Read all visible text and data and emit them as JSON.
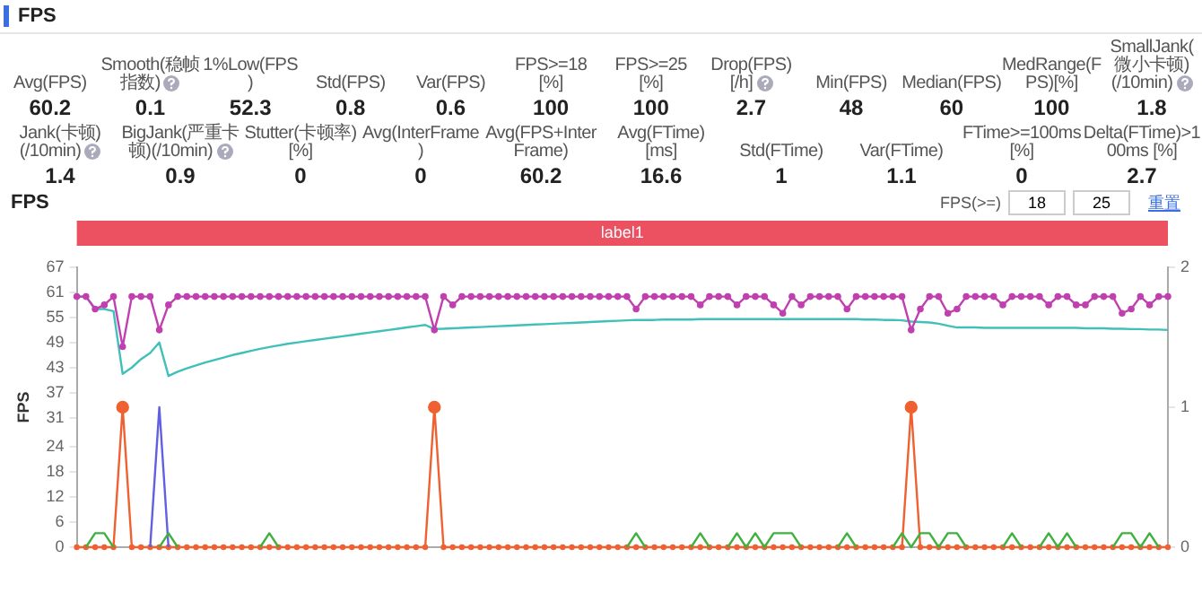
{
  "chart_data": [
    {
      "type": "other",
      "title": "FPS",
      "annotations": [
        "Avg(FPS)",
        "60.2",
        "Smooth(稳帧指数)",
        "0.1",
        "1%Low(FPS)",
        "52.3",
        "Std(FPS)",
        "0.8",
        "Var(FPS)",
        "0.6",
        "FPS>=18 [%]",
        "100",
        "FPS>=25 [%]",
        "100",
        "Drop(FPS) [/h]",
        "2.7",
        "Min(FPS)",
        "48",
        "Median(FPS)",
        "60",
        "MedRange(FPS)[%]",
        "100",
        "SmallJank(微小卡顿)(/10min)",
        "1.8",
        "Jank(卡顿)(/10min)",
        "1.4",
        "BigJank(严重卡顿)(/10min)",
        "0.9",
        "Stutter(卡顿率) [%]",
        "0",
        "Avg(InterFrame)",
        "0",
        "Avg(FPS+InterFrame)",
        "60.2",
        "Avg(FTime) [ms]",
        "16.6",
        "Std(FTime)",
        "1",
        "Var(FTime)",
        "1.1",
        "FTime>=100ms [%]",
        "0",
        "Delta(FTime)>100ms [%]",
        "2.7"
      ]
    },
    {
      "type": "line",
      "title": "FPS",
      "ylabel": "FPS",
      "ylim": [
        0,
        67
      ],
      "yticks": [
        0,
        6,
        12,
        18,
        24,
        31,
        37,
        43,
        49,
        55,
        61,
        67
      ],
      "y2lim": [
        0,
        2
      ],
      "y2ticks": [
        0,
        1,
        2
      ],
      "tick_labels": "y",
      "annotations": [
        "label1",
        "FPS(>=)",
        "18",
        "25",
        "重置"
      ],
      "categories": [
        null,
        null,
        null,
        null,
        null,
        null,
        null,
        null,
        null,
        null,
        null,
        null,
        null,
        null,
        null,
        null,
        null,
        null,
        null,
        null,
        null,
        null,
        null,
        null,
        null,
        null,
        null,
        null,
        null,
        null,
        null,
        null,
        null,
        null,
        null,
        null,
        null,
        null,
        null,
        null,
        null,
        null,
        null,
        null,
        null,
        null,
        null,
        null,
        null,
        null,
        null,
        null,
        null,
        null,
        null,
        null,
        null,
        null,
        null,
        null,
        null,
        null,
        null,
        null,
        null,
        null,
        null,
        null,
        null,
        null,
        null,
        null,
        null,
        null,
        null,
        null,
        null,
        null,
        null,
        null,
        null,
        null,
        null,
        null,
        null,
        null,
        null,
        null,
        null,
        null,
        null,
        null,
        null,
        null,
        null,
        null,
        null,
        null,
        null,
        null,
        null,
        null,
        null,
        null,
        null,
        null,
        null,
        null,
        null,
        null,
        null,
        null,
        null,
        null,
        null,
        null,
        null,
        null,
        null,
        null
      ],
      "series": [
        {
          "type": "line",
          "color": "#40c0b8",
          "marker": "none",
          "values": [
            60,
            60,
            57,
            57,
            56.5,
            41.5,
            43,
            45,
            46.5,
            49,
            41,
            42,
            42.8,
            43.5,
            44.2,
            44.8,
            45.4,
            46,
            46.5,
            47,
            47.5,
            47.9,
            48.3,
            48.7,
            49,
            49.3,
            49.6,
            49.9,
            50.2,
            50.5,
            50.8,
            51.1,
            51.4,
            51.7,
            52,
            52.3,
            52.6,
            52.9,
            53.2,
            52.2,
            52.3,
            52.4,
            52.5,
            52.6,
            52.7,
            52.8,
            52.9,
            53,
            53.1,
            53.2,
            53.3,
            53.4,
            53.5,
            53.6,
            53.7,
            53.8,
            53.9,
            54,
            54.1,
            54.2,
            54.3,
            54.4,
            54.4,
            54.4,
            54.5,
            54.5,
            54.5,
            54.5,
            54.6,
            54.6,
            54.6,
            54.6,
            54.6,
            54.6,
            54.6,
            54.6,
            54.6,
            54.6,
            54.6,
            54.6,
            54.6,
            54.6,
            54.6,
            54.6,
            54.6,
            54.6,
            54.5,
            54.5,
            54.4,
            54.4,
            54.3,
            54,
            53.9,
            53.8,
            53.5,
            53,
            52.6,
            52.6,
            52.6,
            52.5,
            52.5,
            52.5,
            52.5,
            52.5,
            52.5,
            52.5,
            52.5,
            52.5,
            52.5,
            52.5,
            52.4,
            52.4,
            52.4,
            52.3,
            52.3,
            52.2,
            52.2,
            52.1,
            52.1,
            52
          ]
        },
        {
          "type": "line",
          "color": "#c040b0",
          "marker": "circle",
          "values": [
            60,
            60,
            57,
            58,
            60,
            48,
            60,
            60,
            60,
            52,
            58,
            60,
            60,
            60,
            60,
            60,
            60,
            60,
            60,
            60,
            60,
            60,
            60,
            60,
            60,
            60,
            60,
            60,
            60,
            60,
            60,
            60,
            60,
            60,
            60,
            60,
            60,
            60,
            60,
            52,
            60,
            58,
            60,
            60,
            60,
            60,
            60,
            60,
            60,
            60,
            60,
            60,
            60,
            60,
            60,
            60,
            60,
            60,
            60,
            60,
            60,
            57,
            60,
            60,
            60,
            60,
            60,
            60,
            58,
            60,
            60,
            60,
            58,
            60,
            60,
            60,
            58,
            56,
            60,
            58,
            60,
            60,
            60,
            60,
            57,
            60,
            60,
            60,
            60,
            60,
            60,
            52,
            57,
            60,
            60,
            56,
            57,
            60,
            60,
            60,
            60,
            58,
            60,
            60,
            60,
            60,
            58,
            60,
            60,
            58,
            58,
            60,
            60,
            60,
            56,
            57,
            60,
            58,
            60,
            60
          ]
        },
        {
          "type": "line",
          "axis": "y2",
          "color": "#f06030",
          "marker": "circle",
          "values": [
            0,
            0,
            0,
            0,
            0,
            1,
            0,
            0,
            0,
            0,
            0,
            0,
            0,
            0,
            0,
            0,
            0,
            0,
            0,
            0,
            0,
            0,
            0,
            0,
            0,
            0,
            0,
            0,
            0,
            0,
            0,
            0,
            0,
            0,
            0,
            0,
            0,
            0,
            0,
            1,
            0,
            0,
            0,
            0,
            0,
            0,
            0,
            0,
            0,
            0,
            0,
            0,
            0,
            0,
            0,
            0,
            0,
            0,
            0,
            0,
            0,
            0,
            0,
            0,
            0,
            0,
            0,
            0,
            0,
            0,
            0,
            0,
            0,
            0,
            0,
            0,
            0,
            0,
            0,
            0,
            0,
            0,
            0,
            0,
            0,
            0,
            0,
            0,
            0,
            0,
            0,
            1,
            0,
            0,
            0,
            0,
            0,
            0,
            0,
            0,
            0,
            0,
            0,
            0,
            0,
            0,
            0,
            0,
            0,
            0,
            0,
            0,
            0,
            0,
            0,
            0,
            0,
            0,
            0,
            0
          ]
        },
        {
          "type": "line",
          "axis": "y2",
          "color": "#6060e0",
          "marker": "none",
          "values": [
            null,
            null,
            null,
            null,
            null,
            null,
            null,
            null,
            0,
            1,
            0,
            null,
            null,
            null,
            null,
            null,
            null,
            null,
            null,
            null,
            null,
            null,
            null,
            null,
            null,
            null,
            null,
            null,
            null,
            null,
            null,
            null,
            null,
            null,
            null,
            null,
            null,
            null,
            null,
            null,
            null,
            null,
            null,
            null,
            null,
            null,
            null,
            null,
            null,
            null,
            null,
            null,
            null,
            null,
            null,
            null,
            null,
            null,
            null,
            null,
            null,
            null,
            null,
            null,
            null,
            null,
            null,
            null,
            null,
            null,
            null,
            null,
            null,
            null,
            null,
            null,
            null,
            null,
            null,
            null,
            null,
            null,
            null,
            null,
            null,
            null,
            null,
            null,
            null,
            null,
            null,
            null,
            null,
            null,
            null,
            null,
            null,
            null,
            null,
            null,
            null,
            null,
            null,
            null,
            null,
            null,
            null,
            null,
            null,
            null,
            null,
            null,
            null,
            null,
            null,
            null,
            null,
            null,
            null,
            null
          ]
        },
        {
          "type": "line",
          "axis": "y2",
          "color": "#40b040",
          "marker": "none",
          "values": [
            null,
            0,
            0.1,
            0.1,
            0,
            null,
            null,
            null,
            null,
            0,
            0.1,
            0,
            null,
            null,
            null,
            null,
            null,
            null,
            null,
            null,
            0,
            0.1,
            0,
            null,
            null,
            null,
            null,
            null,
            null,
            null,
            null,
            null,
            null,
            null,
            null,
            null,
            null,
            null,
            null,
            null,
            null,
            null,
            null,
            null,
            null,
            null,
            null,
            null,
            null,
            null,
            null,
            null,
            null,
            null,
            null,
            null,
            null,
            null,
            null,
            null,
            0,
            0.1,
            0,
            null,
            null,
            null,
            null,
            0,
            0.1,
            0,
            null,
            0,
            0.1,
            0,
            0.1,
            0,
            0.1,
            0.1,
            0.1,
            0,
            null,
            null,
            null,
            0,
            0.1,
            0,
            null,
            null,
            null,
            0,
            0.1,
            0,
            0.1,
            0.1,
            0,
            0.1,
            0.1,
            0,
            null,
            null,
            null,
            0,
            0.1,
            0,
            null,
            0,
            0.1,
            0,
            0.1,
            0,
            null,
            null,
            null,
            0,
            0.1,
            0.1,
            0,
            0.1,
            0,
            null
          ]
        }
      ]
    }
  ]
}
